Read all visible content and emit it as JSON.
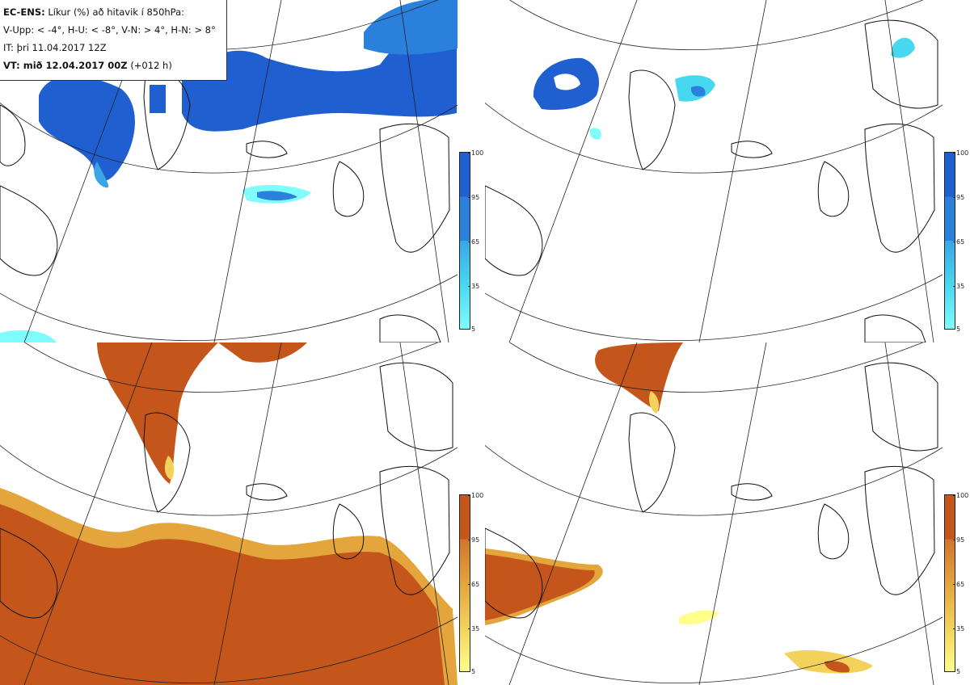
{
  "info": {
    "line1_bold": "EC-ENS:",
    "line1_rest": "Líkur (%) að hitavik í 850hPa:",
    "line2": "V-Upp: < -4°, H-U: < -8°, V-N: > 4°, H-N: > 8°",
    "line3": "IT: þri 11.04.2017 12Z",
    "line4_bold": "VT: mið 12.04.2017 00Z",
    "line4_rest": "(+012 h)"
  },
  "legend_ticks": [
    "100",
    "95",
    "65",
    "35",
    "5"
  ],
  "colors": {
    "cold_scale": [
      "#7ffcfc",
      "#47d8f0",
      "#3aa6e6",
      "#2b80dc",
      "#1f5fd0"
    ],
    "warm_scale": [
      "#fefe8a",
      "#f2d25a",
      "#e3a53c",
      "#d3742a",
      "#c4561c"
    ],
    "coast": "#111111",
    "grid": "#222222"
  },
  "panels": [
    {
      "id": "top-left",
      "variable": "V-Upp",
      "scale": "cold"
    },
    {
      "id": "top-right",
      "variable": "H-U",
      "scale": "cold"
    },
    {
      "id": "bottom-left",
      "variable": "V-N",
      "scale": "warm"
    },
    {
      "id": "bottom-right",
      "variable": "H-N",
      "scale": "warm"
    }
  ]
}
